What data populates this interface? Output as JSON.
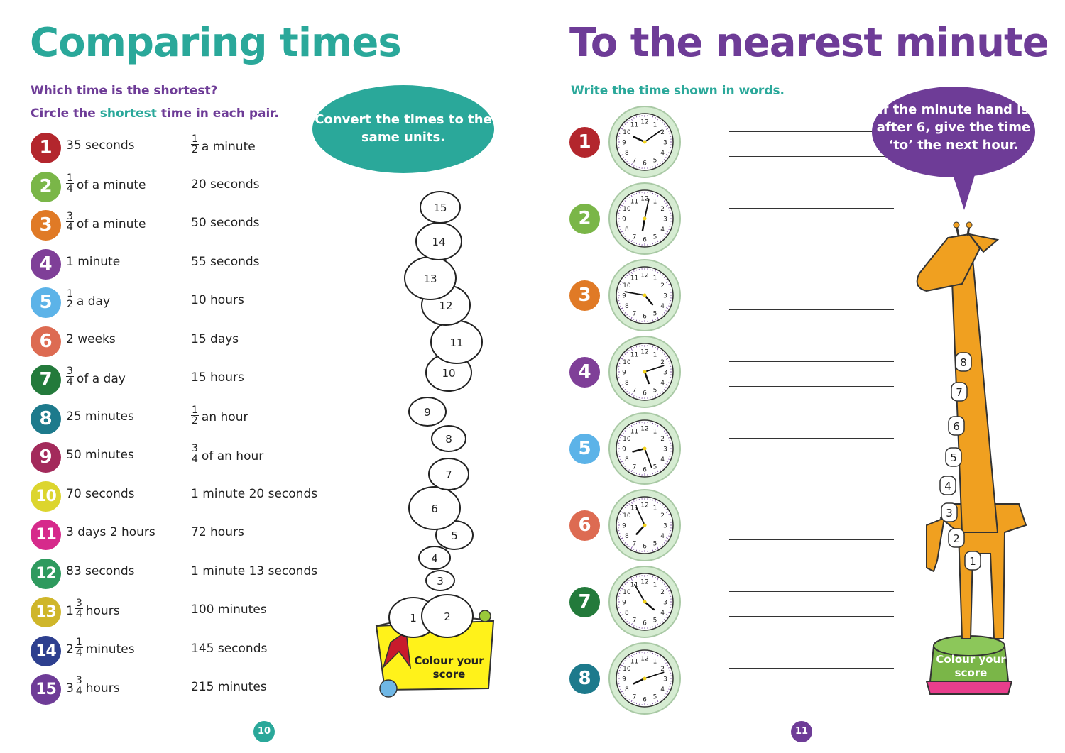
{
  "left": {
    "title": "Comparing times",
    "instruction1": "Which time is the shortest?",
    "instruction2": {
      "pre": "Circle the ",
      "highlight": "shortest",
      "post": " time in each pair."
    },
    "tip": "Convert the times to the same units.",
    "page_number": "10",
    "score_label": "Colour your score",
    "score_items": [
      "1",
      "2",
      "3",
      "4",
      "5",
      "6",
      "7",
      "8",
      "9",
      "10",
      "11",
      "12",
      "13",
      "14",
      "15"
    ],
    "pairs": [
      {
        "n": "1",
        "color": "#b3262d",
        "a": {
          "w": "",
          "fn": "",
          "fd": "",
          "t": "35 seconds"
        },
        "b": {
          "w": "",
          "fn": "1",
          "fd": "2",
          "t": "a minute"
        }
      },
      {
        "n": "2",
        "color": "#7ab648",
        "a": {
          "w": "",
          "fn": "1",
          "fd": "4",
          "t": "of a minute"
        },
        "b": {
          "w": "",
          "fn": "",
          "fd": "",
          "t": "20 seconds"
        }
      },
      {
        "n": "3",
        "color": "#e07a26",
        "a": {
          "w": "",
          "fn": "3",
          "fd": "4",
          "t": "of a minute"
        },
        "b": {
          "w": "",
          "fn": "",
          "fd": "",
          "t": "50 seconds"
        }
      },
      {
        "n": "4",
        "color": "#7f3f98",
        "a": {
          "w": "",
          "fn": "",
          "fd": "",
          "t": "1 minute"
        },
        "b": {
          "w": "",
          "fn": "",
          "fd": "",
          "t": "55 seconds"
        }
      },
      {
        "n": "5",
        "color": "#5cb3e8",
        "a": {
          "w": "",
          "fn": "1",
          "fd": "2",
          "t": "a day"
        },
        "b": {
          "w": "",
          "fn": "",
          "fd": "",
          "t": "10 hours"
        }
      },
      {
        "n": "6",
        "color": "#dd6b52",
        "a": {
          "w": "",
          "fn": "",
          "fd": "",
          "t": "2 weeks"
        },
        "b": {
          "w": "",
          "fn": "",
          "fd": "",
          "t": "15 days"
        }
      },
      {
        "n": "7",
        "color": "#237a3b",
        "a": {
          "w": "",
          "fn": "3",
          "fd": "4",
          "t": "of a day"
        },
        "b": {
          "w": "",
          "fn": "",
          "fd": "",
          "t": "15 hours"
        }
      },
      {
        "n": "8",
        "color": "#1d7a8c",
        "a": {
          "w": "",
          "fn": "",
          "fd": "",
          "t": "25 minutes"
        },
        "b": {
          "w": "",
          "fn": "1",
          "fd": "2",
          "t": "an hour"
        }
      },
      {
        "n": "9",
        "color": "#a32a5b",
        "a": {
          "w": "",
          "fn": "",
          "fd": "",
          "t": "50 minutes"
        },
        "b": {
          "w": "",
          "fn": "3",
          "fd": "4",
          "t": "of an hour"
        }
      },
      {
        "n": "10",
        "color": "#dcd52e",
        "a": {
          "w": "",
          "fn": "",
          "fd": "",
          "t": "70 seconds"
        },
        "b": {
          "w": "",
          "fn": "",
          "fd": "",
          "t": "1 minute 20 seconds"
        }
      },
      {
        "n": "11",
        "color": "#d62a8b",
        "a": {
          "w": "",
          "fn": "",
          "fd": "",
          "t": "3 days 2 hours"
        },
        "b": {
          "w": "",
          "fn": "",
          "fd": "",
          "t": "72 hours"
        }
      },
      {
        "n": "12",
        "color": "#2e9a5e",
        "a": {
          "w": "",
          "fn": "",
          "fd": "",
          "t": "83 seconds"
        },
        "b": {
          "w": "",
          "fn": "",
          "fd": "",
          "t": "1 minute 13 seconds"
        }
      },
      {
        "n": "13",
        "color": "#cfb62a",
        "a": {
          "w": "1",
          "fn": "3",
          "fd": "4",
          "t": "hours"
        },
        "b": {
          "w": "",
          "fn": "",
          "fd": "",
          "t": "100 minutes"
        }
      },
      {
        "n": "14",
        "color": "#2d3f8f",
        "a": {
          "w": "2",
          "fn": "1",
          "fd": "4",
          "t": "minutes"
        },
        "b": {
          "w": "",
          "fn": "",
          "fd": "",
          "t": "145 seconds"
        }
      },
      {
        "n": "15",
        "color": "#6e3c97",
        "a": {
          "w": "3",
          "fn": "3",
          "fd": "4",
          "t": "hours"
        },
        "b": {
          "w": "",
          "fn": "",
          "fd": "",
          "t": "215 minutes"
        }
      }
    ]
  },
  "right": {
    "title": "To the nearest minute",
    "instruction": "Write the time shown in words.",
    "tip": "If the minute hand is after 6, give the time ‘to’ the next hour.",
    "page_number": "11",
    "score_label": "Colour your score",
    "score_items": [
      "1",
      "2",
      "3",
      "4",
      "5",
      "6",
      "7",
      "8"
    ],
    "clock_numerals": [
      "12",
      "1",
      "2",
      "3",
      "4",
      "5",
      "6",
      "7",
      "8",
      "9",
      "10",
      "11"
    ],
    "clocks": [
      {
        "n": "1",
        "color": "#b3262d",
        "hour_angle": 295,
        "minute_angle": 55
      },
      {
        "n": "2",
        "color": "#7ab648",
        "hour_angle": 190,
        "minute_angle": 12
      },
      {
        "n": "3",
        "color": "#e07a26",
        "hour_angle": 140,
        "minute_angle": 280
      },
      {
        "n": "4",
        "color": "#7f3f98",
        "hour_angle": 160,
        "minute_angle": 72
      },
      {
        "n": "5",
        "color": "#5cb3e8",
        "hour_angle": 255,
        "minute_angle": 160
      },
      {
        "n": "6",
        "color": "#dd6b52",
        "hour_angle": 222,
        "minute_angle": 335
      },
      {
        "n": "7",
        "color": "#237a3b",
        "hour_angle": 130,
        "minute_angle": 330
      },
      {
        "n": "8",
        "color": "#1d7a8c",
        "hour_angle": 245,
        "minute_angle": 72
      }
    ]
  }
}
